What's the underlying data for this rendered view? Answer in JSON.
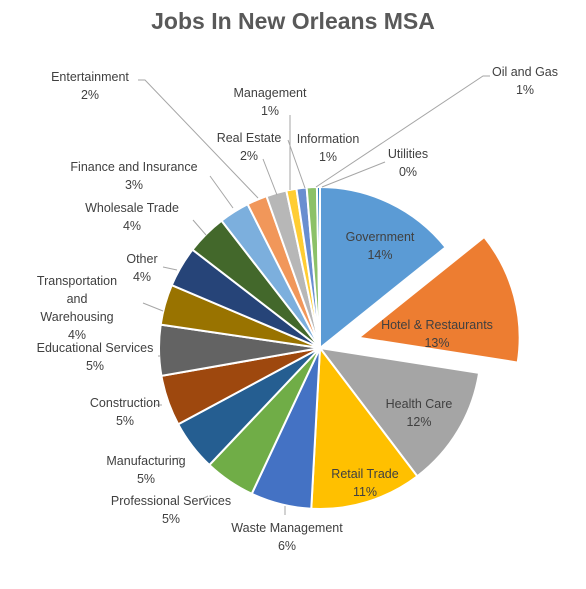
{
  "chart_data": {
    "type": "pie",
    "title": "Jobs In New Orleans MSA",
    "slices": [
      {
        "label": "Government",
        "pct_label": "14%",
        "value": 14,
        "color": "#5B9BD5"
      },
      {
        "label": "Hotel & Restaurants",
        "pct_label": "13%",
        "value": 13,
        "color": "#ED7D31",
        "exploded": true
      },
      {
        "label": "Health Care",
        "pct_label": "12%",
        "value": 12,
        "color": "#A5A5A5"
      },
      {
        "label": "Retail Trade",
        "pct_label": "11%",
        "value": 11,
        "color": "#FFC000"
      },
      {
        "label": "Waste Management",
        "pct_label": "6%",
        "value": 6,
        "color": "#4472C4"
      },
      {
        "label": "Professional Services",
        "pct_label": "5%",
        "value": 5,
        "color": "#70AD47"
      },
      {
        "label": "Manufacturing",
        "pct_label": "5%",
        "value": 5,
        "color": "#255E91"
      },
      {
        "label": "Construction",
        "pct_label": "5%",
        "value": 5,
        "color": "#9E480E"
      },
      {
        "label": "Educational Services",
        "pct_label": "5%",
        "value": 5,
        "color": "#636363"
      },
      {
        "label": "Transportation and Warehousing",
        "pct_label": "4%",
        "value": 4,
        "color": "#997300"
      },
      {
        "label": "Other",
        "pct_label": "4%",
        "value": 4,
        "color": "#264478"
      },
      {
        "label": "Wholesale Trade",
        "pct_label": "4%",
        "value": 4,
        "color": "#43682B"
      },
      {
        "label": "Finance and Insurance",
        "pct_label": "3%",
        "value": 3,
        "color": "#7CAFDD"
      },
      {
        "label": "Entertainment",
        "pct_label": "2%",
        "value": 2,
        "color": "#F1975A"
      },
      {
        "label": "Real Estate",
        "pct_label": "2%",
        "value": 2,
        "color": "#B7B7B7"
      },
      {
        "label": "Management",
        "pct_label": "1%",
        "value": 1,
        "color": "#FFCD33"
      },
      {
        "label": "Information",
        "pct_label": "1%",
        "value": 1,
        "color": "#698ED0"
      },
      {
        "label": "Oil and Gas",
        "pct_label": "1%",
        "value": 1,
        "color": "#8CC168"
      },
      {
        "label": "Utilities",
        "pct_label": "0%",
        "value": 0.3,
        "color": "#327DC2"
      }
    ]
  }
}
